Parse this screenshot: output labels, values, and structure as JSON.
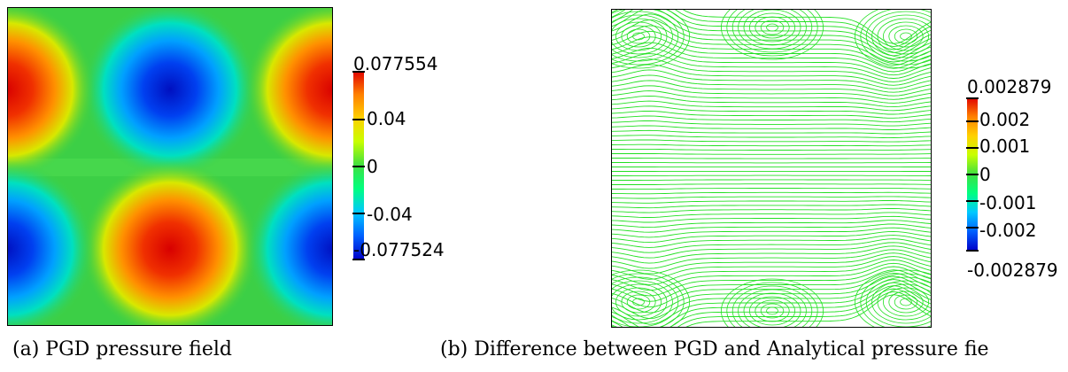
{
  "panel_a": {
    "caption": "(a) PGD pressure field",
    "colorbar": {
      "max_label": "0.077554",
      "min_label": "-0.077524",
      "ticks": [
        "0.04",
        "0",
        "-0.04"
      ],
      "colors": [
        "#0000c8",
        "#0060ff",
        "#00c8ff",
        "#00ff80",
        "#40e040",
        "#c8ff00",
        "#ffd000",
        "#ff8000",
        "#e00000"
      ]
    }
  },
  "panel_b": {
    "caption": "(b) Difference between PGD and Analytical pressure fie",
    "colorbar": {
      "max_label": "0.002879",
      "min_label": "-0.002879",
      "ticks": [
        "0.002",
        "0.001",
        "0",
        "-0.001",
        "-0.002"
      ],
      "colors": [
        "#0000c8",
        "#0060ff",
        "#00c8ff",
        "#00ff80",
        "#40e040",
        "#c8ff00",
        "#ffd000",
        "#ff8000",
        "#e00000"
      ]
    },
    "line_color": "#22e022"
  }
}
